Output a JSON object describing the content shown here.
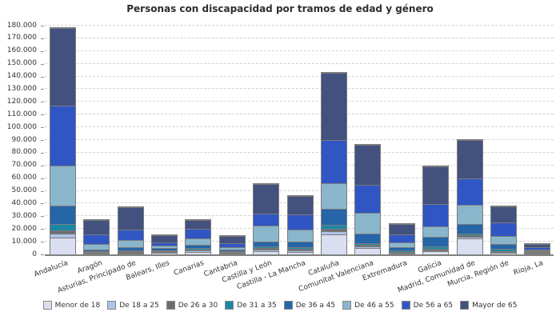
{
  "title": "Personas con discapacidad por tramos de edad y género",
  "colors": {
    "grid": "#d2d2d2",
    "axis": "#808080",
    "bar_border": "#7c7c7c",
    "text": "#333333",
    "title_text": "#2e2e2e"
  },
  "chart_data": {
    "type": "bar",
    "stacked": true,
    "title": "Personas con discapacidad por tramos de edad y género",
    "xlabel": "",
    "ylabel": "",
    "legend_position": "bottom",
    "grid": "horizontal-dashed",
    "categories": [
      "Andalucía",
      "Aragón",
      "Asturias, Principado de",
      "Balears, Illes",
      "Canarias",
      "Cantabria",
      "Castilla y León",
      "Castilla - La Mancha",
      "Cataluña",
      "Comunitat Valenciana",
      "Extremadura",
      "Galicia",
      "Madrid, Comunidad de",
      "Murcia, Región de",
      "Rioja, La"
    ],
    "series": [
      {
        "name": "Menor de 18",
        "color": "#d9def0",
        "values": [
          13400,
          700,
          900,
          1000,
          1900,
          700,
          2300,
          1900,
          16000,
          5000,
          900,
          2500,
          12400,
          1300,
          300
        ]
      },
      {
        "name": "De 18 a 25",
        "color": "#aec4e8",
        "values": [
          3100,
          300,
          500,
          400,
          1100,
          300,
          1300,
          1400,
          2000,
          1500,
          400,
          800,
          1400,
          500,
          200
        ]
      },
      {
        "name": "De 26 a 30",
        "color": "#6b6d70",
        "values": [
          2200,
          400,
          700,
          400,
          800,
          300,
          1400,
          1100,
          2100,
          1000,
          400,
          1300,
          1300,
          700,
          200
        ]
      },
      {
        "name": "De 31 a 35",
        "color": "#1b87a5",
        "values": [
          5200,
          500,
          800,
          500,
          1200,
          400,
          1100,
          1300,
          3200,
          1300,
          700,
          1500,
          1400,
          1500,
          300
        ]
      },
      {
        "name": "De 36 a 45",
        "color": "#2565a8",
        "values": [
          14700,
          1500,
          2500,
          2100,
          2700,
          1000,
          4200,
          4200,
          12500,
          7500,
          2800,
          7900,
          7400,
          4200,
          700
        ]
      },
      {
        "name": "De 46 a 55",
        "color": "#8ab6cb",
        "values": [
          31400,
          4200,
          5900,
          1700,
          4700,
          2000,
          12500,
          9800,
          20000,
          16500,
          3600,
          8200,
          15100,
          6300,
          800
        ]
      },
      {
        "name": "De 56 a 65",
        "color": "#3056c4",
        "values": [
          47200,
          7400,
          8400,
          2900,
          7900,
          3300,
          9500,
          11500,
          34200,
          22000,
          6700,
          17400,
          20600,
          10500,
          1500
        ]
      },
      {
        "name": "Mayor de 65",
        "color": "#42517e",
        "values": [
          60800,
          11300,
          17100,
          5400,
          6700,
          5700,
          23000,
          14700,
          53000,
          31500,
          8000,
          29400,
          30300,
          12500,
          2500
        ]
      }
    ],
    "y_axis": {
      "min": 0,
      "max": 180000,
      "tick_step": 10000,
      "tick_labels": [
        "0",
        "10.000",
        "20.000",
        "30.000",
        "40.000",
        "50.000",
        "60.000",
        "70.000",
        "80.000",
        "90.000",
        "100.000",
        "110.000",
        "120.000",
        "130.000",
        "140.000",
        "150.000",
        "160.000",
        "170.000",
        "180.000"
      ]
    },
    "x_axis": {
      "labels_rotated": true
    }
  }
}
